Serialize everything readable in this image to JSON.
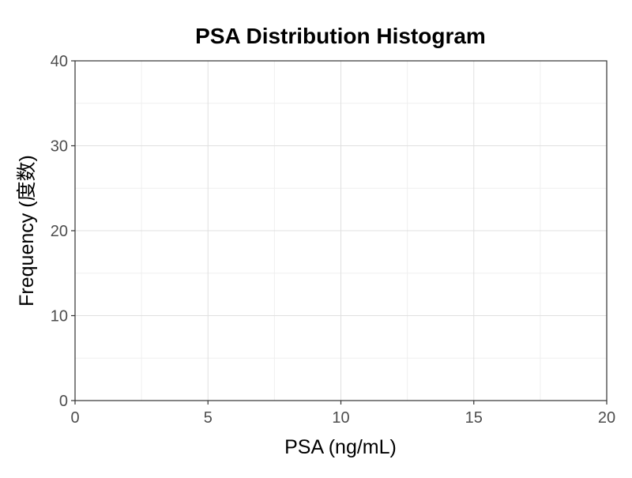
{
  "chart_data": {
    "type": "bar",
    "title": "PSA Distribution Histogram",
    "xlabel": "PSA (ng/mL)",
    "ylabel": "Frequency (度数)",
    "xlim": [
      0,
      20
    ],
    "ylim": [
      0,
      40
    ],
    "x_ticks": [
      "0",
      "5",
      "10",
      "15",
      "20"
    ],
    "y_ticks": [
      "0",
      "10",
      "20",
      "30",
      "40"
    ],
    "bins": [],
    "values": [],
    "grid": true,
    "colors": {
      "grid_major": "#e0e0e0",
      "grid_minor": "#efefef",
      "axis": "#333333",
      "tick_label": "#4d4d4d",
      "bar_fill": "#595959"
    }
  }
}
